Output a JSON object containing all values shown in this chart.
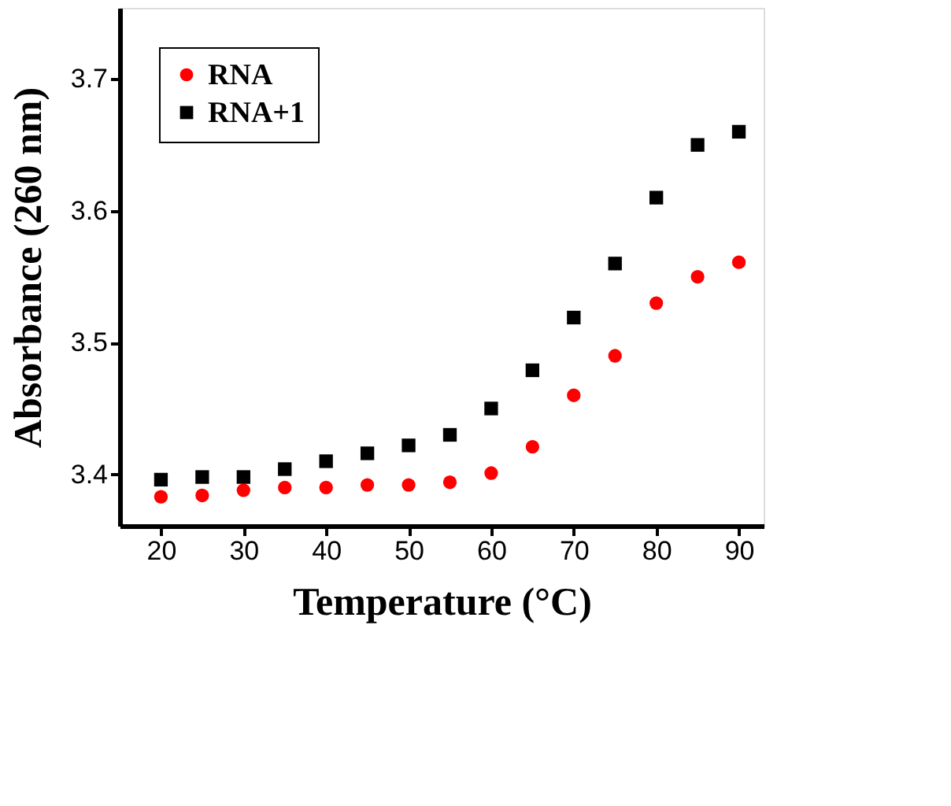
{
  "chart_data": {
    "type": "scatter",
    "xlabel": "Temperature (°C)",
    "ylabel": "Absorbance (260 nm)",
    "x": [
      20,
      25,
      30,
      35,
      40,
      45,
      50,
      55,
      60,
      65,
      70,
      75,
      80,
      85,
      90
    ],
    "series": [
      {
        "name": "RNA",
        "color": "#ff0000",
        "marker": "circle",
        "values": [
          3.383,
          3.384,
          3.388,
          3.39,
          3.39,
          3.392,
          3.392,
          3.394,
          3.401,
          3.421,
          3.46,
          3.49,
          3.53,
          3.55,
          3.561
        ]
      },
      {
        "name": "RNA+1",
        "color": "#000000",
        "marker": "square",
        "values": [
          3.396,
          3.398,
          3.398,
          3.404,
          3.41,
          3.416,
          3.422,
          3.43,
          3.45,
          3.479,
          3.519,
          3.56,
          3.61,
          3.65,
          3.66
        ]
      }
    ],
    "xlim": [
      15,
      93
    ],
    "ylim": [
      3.361,
      3.754
    ],
    "xticks": [
      20,
      30,
      40,
      50,
      60,
      70,
      80,
      90
    ],
    "yticks": [
      3.4,
      3.5,
      3.6,
      3.7
    ],
    "grid": false,
    "legend": "top left"
  }
}
